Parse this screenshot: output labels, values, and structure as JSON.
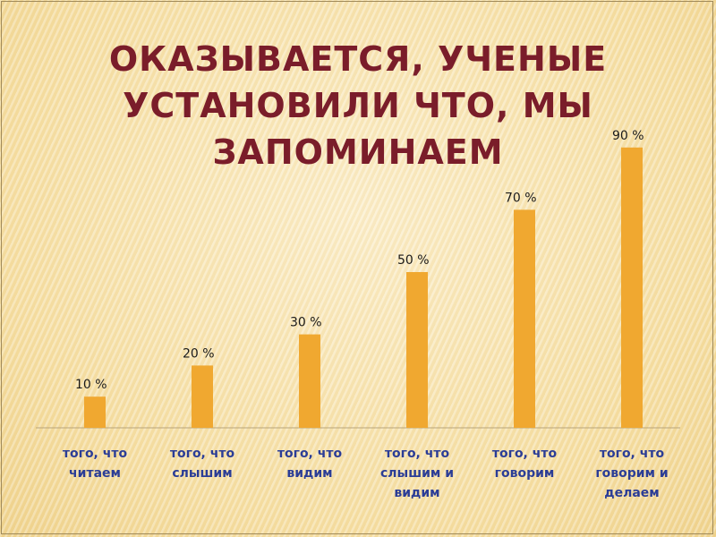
{
  "slide": {
    "title_line1": "Оказывается, ученые",
    "title_line2": "установили что, мы запоминаем"
  },
  "colors": {
    "bar": "#f0a830",
    "title": "#7a1d2a",
    "category_label": "#2b3d96",
    "value_label": "#1a1a1a",
    "axis": "#b8a47a"
  },
  "chart_data": {
    "type": "bar",
    "categories": [
      "того, что читаем",
      "того, что слышим",
      "того, что видим",
      "того, что слышим и видим",
      "того, что говорим",
      "того, что говорим и делаем"
    ],
    "values": [
      10,
      20,
      30,
      50,
      70,
      90
    ],
    "data_labels": [
      "10 %",
      "20 %",
      "30 %",
      "50 %",
      "70 %",
      "90 %"
    ],
    "title": "",
    "xlabel": "",
    "ylabel": "",
    "ylim": [
      0,
      100
    ],
    "grid": false,
    "legend": "none"
  }
}
